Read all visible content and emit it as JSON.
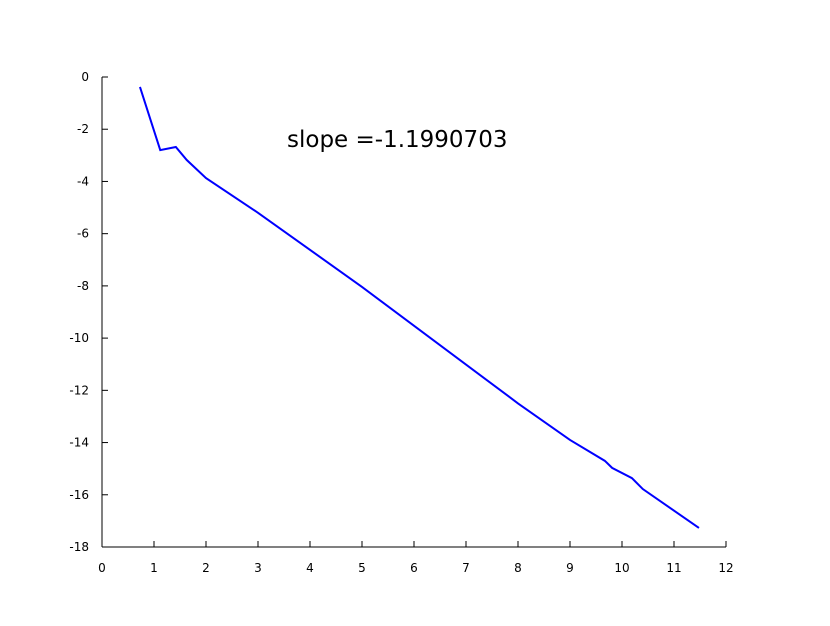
{
  "chart_data": {
    "type": "line",
    "annotation": "slope =-1.1990703",
    "x": [
      0.73,
      1.12,
      1.42,
      1.63,
      2.0,
      3.0,
      5.0,
      8.0,
      9.0,
      9.67,
      9.81,
      10.19,
      10.4,
      11.48
    ],
    "series": [
      {
        "color": "#0000ff",
        "values": [
          -0.38,
          -2.8,
          -2.68,
          -3.18,
          -3.87,
          -5.2,
          -8.04,
          -12.5,
          -13.9,
          -14.7,
          -14.97,
          -15.36,
          -15.78,
          -17.27
        ]
      }
    ],
    "xlim": [
      0,
      12
    ],
    "xticks": [
      0,
      1,
      2,
      3,
      4,
      5,
      6,
      7,
      8,
      9,
      10,
      11,
      12
    ],
    "ylim": [
      -18,
      0
    ],
    "yticks": [
      -18,
      -16,
      -14,
      -12,
      -10,
      -8,
      -6,
      -4,
      -2,
      0
    ]
  }
}
